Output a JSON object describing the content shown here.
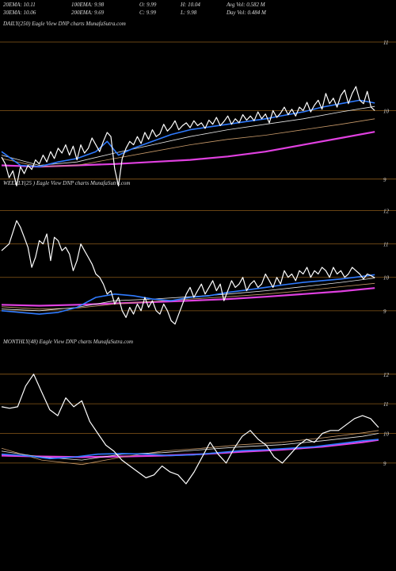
{
  "header": {
    "row1": [
      {
        "key": "ema20",
        "text": "20EMA: 10.11"
      },
      {
        "key": "ema100",
        "text": "100EMA: 9.98"
      },
      {
        "key": "open",
        "text": "O: 9.99"
      },
      {
        "key": "high",
        "text": "H: 10.04"
      },
      {
        "key": "avgvol",
        "text": "Avg Vol: 0.582  M"
      }
    ],
    "row2": [
      {
        "key": "ema30",
        "text": "30EMA: 10.06"
      },
      {
        "key": "ema200",
        "text": "200EMA: 9.69"
      },
      {
        "key": "close",
        "text": "C: 9.99"
      },
      {
        "key": "low",
        "text": "L: 9.98"
      },
      {
        "key": "dayvol",
        "text": "Day Vol: 0.484  M"
      }
    ]
  },
  "colors": {
    "background": "#000000",
    "price": "#ffffff",
    "ema_fast": "#2f7bff",
    "ema_mid": "#e8e8e8",
    "ema_slow": "#c89a6a",
    "ema_long": "#e040e0",
    "gridline": "#8a5a1a",
    "text": "#dcdcdc"
  },
  "chart_data": [
    {
      "type": "line",
      "label": "DAILY(250) Eagle  View  DNP charts MunafaSutra.com",
      "yticks": [
        9,
        10,
        11
      ],
      "ylim": [
        8.72,
        11.15
      ],
      "xlim": [
        0,
        100
      ],
      "series": [
        {
          "role": "price",
          "x": [
            0,
            1,
            2,
            3,
            4,
            5,
            6,
            7,
            8,
            9,
            10,
            11,
            12,
            13,
            14,
            15,
            16,
            17,
            18,
            19,
            20,
            21,
            22,
            23,
            24,
            25,
            26,
            27,
            28,
            29,
            30,
            31,
            32,
            33,
            34,
            35,
            36,
            37,
            38,
            39,
            40,
            41,
            42,
            43,
            44,
            45,
            46,
            47,
            48,
            49,
            50,
            51,
            52,
            53,
            54,
            55,
            56,
            57,
            58,
            59,
            60,
            61,
            62,
            63,
            64,
            65,
            66,
            67,
            68,
            69,
            70,
            71,
            72,
            73,
            74,
            75,
            76,
            77,
            78,
            79,
            80,
            81,
            82,
            83,
            84,
            85,
            86,
            87,
            88,
            89,
            90,
            91,
            92,
            93,
            94,
            95,
            96,
            97,
            98,
            99
          ],
          "y": [
            9.32,
            9.22,
            9.02,
            9.12,
            8.9,
            9.18,
            9.08,
            9.2,
            9.14,
            9.28,
            9.22,
            9.35,
            9.25,
            9.4,
            9.3,
            9.45,
            9.38,
            9.5,
            9.35,
            9.48,
            9.28,
            9.5,
            9.38,
            9.45,
            9.6,
            9.5,
            9.4,
            9.55,
            9.68,
            9.62,
            9.15,
            8.9,
            9.3,
            9.45,
            9.55,
            9.5,
            9.62,
            9.52,
            9.68,
            9.58,
            9.72,
            9.62,
            9.66,
            9.8,
            9.7,
            9.76,
            9.85,
            9.72,
            9.78,
            9.82,
            9.75,
            9.85,
            9.78,
            9.82,
            9.74,
            9.86,
            9.8,
            9.9,
            9.78,
            9.84,
            9.92,
            9.8,
            9.88,
            9.82,
            9.94,
            9.86,
            9.92,
            9.85,
            9.98,
            9.88,
            9.95,
            9.82,
            10.0,
            9.9,
            9.96,
            10.05,
            9.94,
            10.02,
            9.92,
            10.05,
            10.0,
            10.12,
            9.98,
            10.08,
            10.15,
            10.02,
            10.25,
            10.1,
            10.18,
            10.05,
            10.22,
            10.3,
            10.1,
            10.25,
            10.35,
            10.15,
            10.1,
            10.28,
            10.05,
            10.0
          ]
        },
        {
          "role": "ema_fast",
          "x": [
            0,
            5,
            10,
            15,
            20,
            25,
            28,
            31,
            35,
            40,
            45,
            50,
            55,
            60,
            65,
            70,
            75,
            80,
            85,
            90,
            95,
            99
          ],
          "y": [
            9.4,
            9.2,
            9.18,
            9.25,
            9.3,
            9.4,
            9.55,
            9.35,
            9.45,
            9.55,
            9.65,
            9.72,
            9.76,
            9.8,
            9.84,
            9.88,
            9.93,
            9.98,
            10.05,
            10.1,
            10.15,
            10.11
          ]
        },
        {
          "role": "ema_mid",
          "x": [
            0,
            10,
            20,
            30,
            40,
            50,
            60,
            70,
            80,
            90,
            99
          ],
          "y": [
            9.35,
            9.2,
            9.25,
            9.38,
            9.5,
            9.62,
            9.72,
            9.8,
            9.88,
            9.98,
            10.06
          ]
        },
        {
          "role": "ema_slow",
          "x": [
            0,
            10,
            20,
            30,
            40,
            50,
            60,
            70,
            80,
            90,
            99
          ],
          "y": [
            9.3,
            9.18,
            9.2,
            9.3,
            9.4,
            9.5,
            9.58,
            9.64,
            9.72,
            9.8,
            9.88
          ]
        },
        {
          "role": "ema_long",
          "x": [
            0,
            10,
            20,
            30,
            40,
            50,
            60,
            70,
            80,
            90,
            99
          ],
          "y": [
            9.2,
            9.18,
            9.2,
            9.22,
            9.25,
            9.28,
            9.33,
            9.4,
            9.5,
            9.6,
            9.69
          ]
        }
      ]
    },
    {
      "type": "line",
      "label": "WEEKLY(25      ) Eagle  View  DNP charts MunafaSutra.com",
      "yticks": [
        9,
        10,
        11,
        12
      ],
      "ylim": [
        8.45,
        12.25
      ],
      "xlim": [
        0,
        100
      ],
      "series": [
        {
          "role": "price",
          "x": [
            0,
            2,
            4,
            5,
            6,
            7,
            8,
            9,
            10,
            11,
            12,
            13,
            14,
            15,
            16,
            17,
            18,
            19,
            20,
            21,
            22,
            23,
            24,
            25,
            26,
            27,
            28,
            29,
            30,
            31,
            32,
            33,
            34,
            35,
            36,
            37,
            38,
            39,
            40,
            41,
            42,
            43,
            44,
            45,
            46,
            47,
            48,
            49,
            50,
            51,
            52,
            53,
            54,
            55,
            56,
            57,
            58,
            59,
            60,
            61,
            62,
            63,
            64,
            65,
            66,
            67,
            68,
            69,
            70,
            71,
            72,
            73,
            74,
            75,
            76,
            77,
            78,
            79,
            80,
            81,
            82,
            83,
            84,
            85,
            86,
            87,
            88,
            89,
            90,
            91,
            92,
            93,
            94,
            95,
            96,
            97,
            98,
            99
          ],
          "y": [
            10.8,
            11.0,
            11.7,
            11.5,
            11.2,
            10.9,
            10.3,
            10.6,
            11.1,
            11.0,
            11.3,
            10.5,
            11.2,
            11.1,
            10.8,
            10.9,
            10.7,
            10.2,
            10.5,
            11.0,
            10.8,
            10.6,
            10.4,
            10.1,
            10.0,
            9.8,
            9.5,
            9.6,
            9.2,
            9.4,
            9.0,
            8.8,
            9.1,
            8.9,
            9.2,
            9.0,
            9.4,
            9.1,
            9.3,
            9.0,
            8.9,
            9.2,
            9.0,
            8.7,
            8.6,
            8.9,
            9.2,
            9.5,
            9.7,
            9.4,
            9.6,
            9.8,
            9.5,
            9.7,
            9.9,
            9.6,
            9.8,
            9.3,
            9.6,
            9.9,
            9.7,
            9.8,
            10.0,
            9.6,
            9.8,
            9.9,
            9.7,
            9.8,
            10.1,
            9.9,
            9.7,
            10.0,
            9.8,
            10.2,
            10.0,
            10.1,
            9.9,
            10.2,
            10.1,
            10.3,
            10.0,
            10.2,
            10.1,
            10.3,
            10.2,
            10.0,
            10.3,
            10.1,
            10.2,
            10.0,
            10.1,
            10.3,
            10.2,
            10.1,
            9.95,
            10.1,
            10.05,
            9.99
          ]
        },
        {
          "role": "ema_fast",
          "x": [
            0,
            5,
            10,
            15,
            20,
            25,
            30,
            35,
            40,
            45,
            50,
            55,
            60,
            65,
            70,
            75,
            80,
            85,
            90,
            95,
            99
          ],
          "y": [
            9.0,
            8.95,
            8.9,
            8.95,
            9.1,
            9.4,
            9.5,
            9.45,
            9.35,
            9.3,
            9.4,
            9.45,
            9.55,
            9.62,
            9.7,
            9.78,
            9.85,
            9.9,
            9.95,
            10.02,
            10.08
          ]
        },
        {
          "role": "ema_mid",
          "x": [
            0,
            10,
            20,
            30,
            40,
            50,
            60,
            70,
            80,
            90,
            99
          ],
          "y": [
            9.05,
            9.0,
            9.1,
            9.3,
            9.35,
            9.42,
            9.5,
            9.6,
            9.72,
            9.85,
            9.98
          ]
        },
        {
          "role": "ema_slow",
          "x": [
            0,
            10,
            20,
            30,
            40,
            50,
            60,
            70,
            80,
            90,
            99
          ],
          "y": [
            9.12,
            9.05,
            9.08,
            9.2,
            9.28,
            9.35,
            9.42,
            9.5,
            9.6,
            9.72,
            9.82
          ]
        },
        {
          "role": "ema_long",
          "x": [
            0,
            10,
            20,
            30,
            40,
            50,
            60,
            70,
            80,
            90,
            99
          ],
          "y": [
            9.18,
            9.15,
            9.18,
            9.22,
            9.26,
            9.3,
            9.35,
            9.42,
            9.5,
            9.58,
            9.68
          ]
        }
      ]
    },
    {
      "type": "line",
      "label": "MONTHLY(48) Eagle  View  DNP charts MunafaSutra.com",
      "yticks": [
        9,
        10,
        11,
        12
      ],
      "ylim": [
        8.3,
        12.45
      ],
      "xlim": [
        0,
        47
      ],
      "series": [
        {
          "role": "price",
          "x": [
            0,
            1,
            2,
            3,
            4,
            5,
            6,
            7,
            8,
            9,
            10,
            11,
            12,
            13,
            14,
            15,
            16,
            17,
            18,
            19,
            20,
            21,
            22,
            23,
            24,
            25,
            26,
            27,
            28,
            29,
            30,
            31,
            32,
            33,
            34,
            35,
            36,
            37,
            38,
            39,
            40,
            41,
            42,
            43,
            44,
            45,
            46,
            47
          ],
          "y": [
            10.9,
            10.85,
            10.9,
            11.6,
            12.0,
            11.4,
            10.8,
            10.6,
            11.2,
            10.9,
            11.1,
            10.4,
            10.0,
            9.6,
            9.4,
            9.1,
            8.9,
            8.7,
            8.5,
            8.6,
            8.9,
            8.7,
            8.6,
            8.3,
            8.7,
            9.2,
            9.7,
            9.3,
            9.0,
            9.5,
            9.9,
            10.1,
            9.8,
            9.6,
            9.2,
            9.0,
            9.3,
            9.6,
            9.8,
            9.7,
            10.0,
            10.1,
            10.1,
            10.3,
            10.5,
            10.6,
            10.5,
            10.2
          ]
        },
        {
          "role": "ema_fast",
          "x": [
            0,
            3,
            6,
            9,
            12,
            15,
            18,
            21,
            24,
            27,
            30,
            33,
            36,
            39,
            42,
            45,
            47
          ],
          "y": [
            9.3,
            9.25,
            9.15,
            9.2,
            9.3,
            9.32,
            9.3,
            9.25,
            9.28,
            9.35,
            9.42,
            9.45,
            9.5,
            9.55,
            9.65,
            9.75,
            9.8
          ]
        },
        {
          "role": "ema_mid",
          "x": [
            0,
            5,
            10,
            15,
            20,
            25,
            30,
            35,
            40,
            45,
            47
          ],
          "y": [
            9.4,
            9.2,
            9.1,
            9.3,
            9.35,
            9.45,
            9.55,
            9.62,
            9.75,
            9.9,
            10.0
          ]
        },
        {
          "role": "ema_slow",
          "x": [
            0,
            5,
            10,
            15,
            20,
            25,
            30,
            35,
            40,
            45,
            47
          ],
          "y": [
            9.5,
            9.1,
            8.95,
            9.2,
            9.4,
            9.5,
            9.62,
            9.7,
            9.85,
            10.02,
            10.1
          ]
        },
        {
          "role": "ema_long",
          "x": [
            0,
            5,
            10,
            15,
            20,
            25,
            30,
            35,
            40,
            45,
            47
          ],
          "y": [
            9.25,
            9.22,
            9.2,
            9.22,
            9.25,
            9.3,
            9.38,
            9.45,
            9.55,
            9.7,
            9.78
          ]
        }
      ]
    }
  ]
}
